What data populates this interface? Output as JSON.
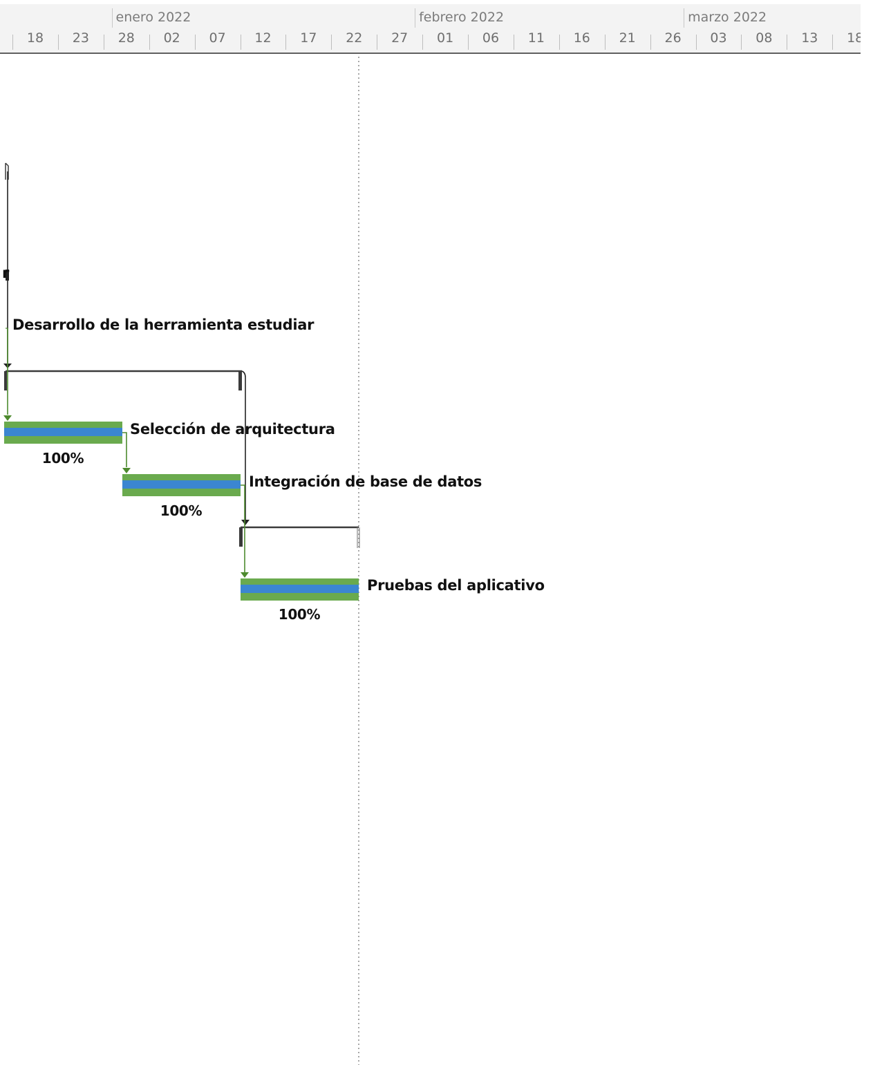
{
  "timescale": {
    "months": [
      {
        "label": "enero 2022",
        "day_index": 14
      },
      {
        "label": "febrero 2022",
        "day_index": 45
      },
      {
        "label": "marzo 2022",
        "day_index": 73
      }
    ],
    "days": [
      "18",
      "23",
      "28",
      "02",
      "07",
      "12",
      "17",
      "22",
      "27",
      "01",
      "06",
      "11",
      "16",
      "21",
      "26",
      "03",
      "08",
      "13",
      "18"
    ]
  },
  "status_line": {
    "date": "2022-01-22"
  },
  "colors": {
    "bar_outer": "#6aaa4e",
    "bar_inner": "#3b86d1",
    "link": "#4d8a2e",
    "summary": "#3a3a3a"
  },
  "summary_parent": {
    "name_fragment": "r"
  },
  "summary_task": {
    "name": "Desarrollo de la herramienta estudiar"
  },
  "tasks": [
    {
      "id": "seleccion",
      "name": "Selección de arquitectura",
      "start": "2021-12-18",
      "finish": "2021-12-31",
      "percent_complete": "100%"
    },
    {
      "id": "integracion",
      "name": "Integración de base de datos",
      "start": "2021-12-31",
      "finish": "2022-01-13",
      "percent_complete": "100%"
    },
    {
      "id": "pruebas",
      "name": "Pruebas del aplicativo",
      "start": "2022-01-13",
      "finish": "2022-01-26",
      "percent_complete": "100%"
    }
  ]
}
